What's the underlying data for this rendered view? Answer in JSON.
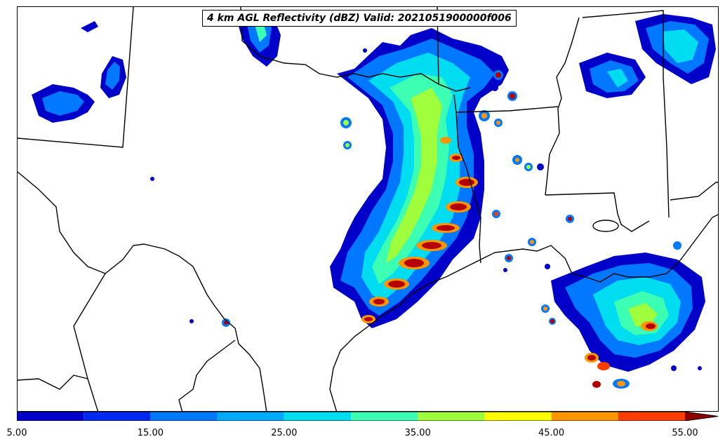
{
  "title": "4 km AGL Reflectivity (dBZ) Valid: 2021051900000f006",
  "colorbar": {
    "levels": [
      5,
      10,
      15,
      20,
      25,
      30,
      35,
      40,
      45,
      50,
      55
    ],
    "colors": [
      "#0000c8",
      "#0028f0",
      "#0078ff",
      "#00aaff",
      "#00dcf0",
      "#3cffb4",
      "#a0ff3c",
      "#ffff00",
      "#ff9600",
      "#ff3c00",
      "#b40000"
    ],
    "extend_color": "#8c0000",
    "tick_labels": [
      "5.00",
      "15.00",
      "25.00",
      "35.00",
      "45.00",
      "55.00"
    ]
  },
  "colors": {
    "background": "#ffffff",
    "boundary": "#000000"
  }
}
